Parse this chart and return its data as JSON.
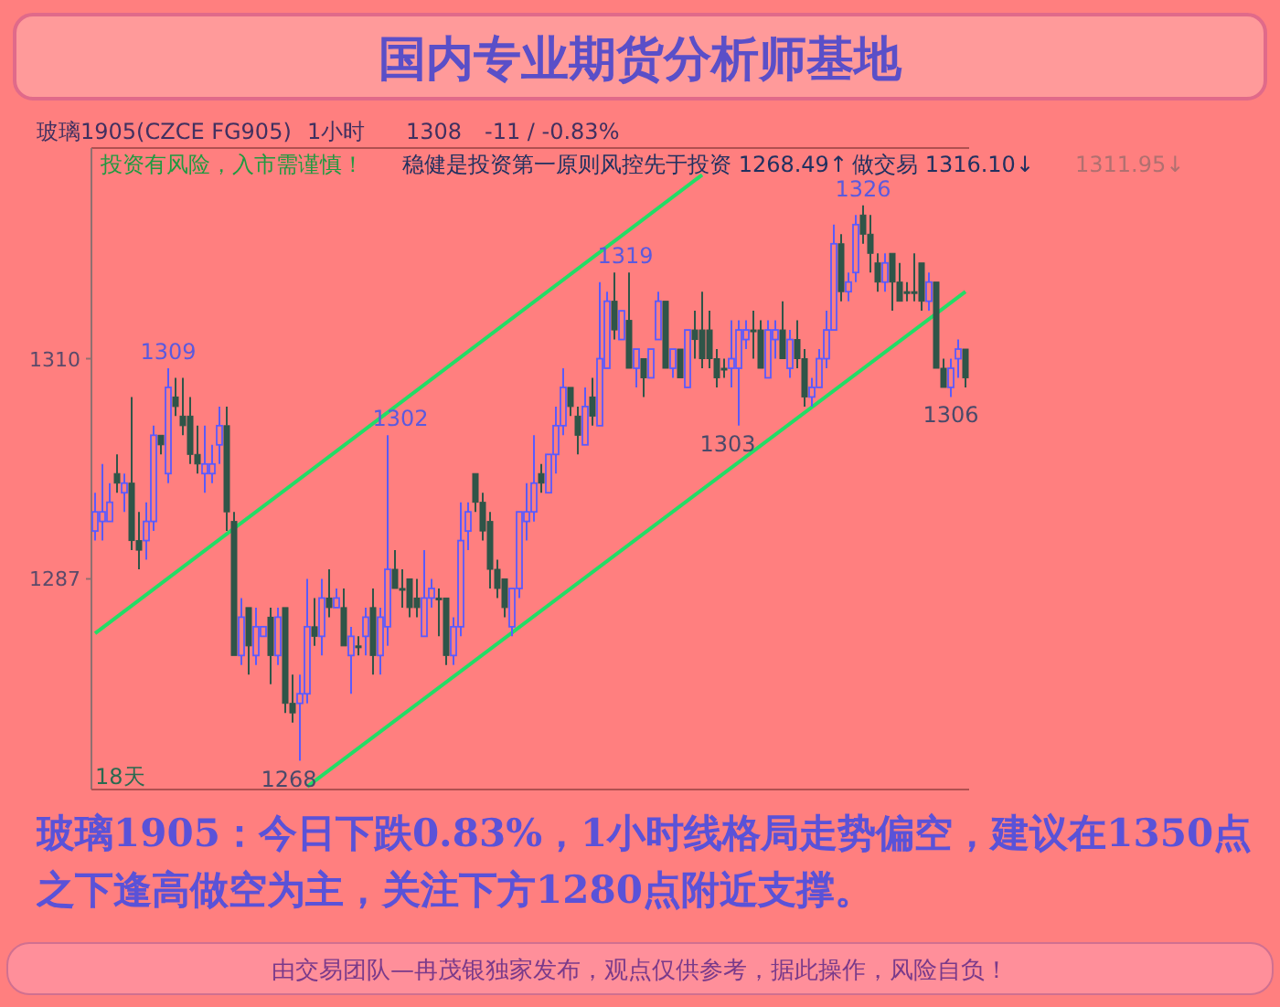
{
  "chart_data": {
    "type": "candlestick",
    "title": "国内专业期货分析师基地",
    "categories": [
      null,
      null,
      null,
      null,
      null,
      null,
      null,
      null,
      null,
      null,
      null,
      null,
      null,
      null,
      null,
      null,
      null,
      null,
      null,
      null,
      null,
      null,
      null,
      null,
      null,
      null,
      null,
      null,
      null,
      null,
      null,
      null,
      null,
      null,
      null,
      null,
      null,
      null,
      null,
      null,
      null,
      null,
      null,
      null,
      null,
      null,
      null,
      null,
      null,
      null,
      null,
      null,
      null,
      null,
      null,
      null,
      null,
      null,
      null,
      null,
      null,
      null,
      null,
      null,
      null,
      null,
      null,
      null,
      null,
      null,
      null,
      null,
      null,
      null,
      null,
      null,
      null,
      null,
      null,
      null,
      null,
      null,
      null,
      null,
      null,
      null,
      null,
      null,
      null,
      null,
      null,
      null,
      null,
      null,
      null,
      null,
      null,
      null,
      null,
      null,
      null,
      null,
      null,
      null,
      null,
      null,
      null,
      null,
      null,
      null,
      null,
      null,
      null,
      null,
      null,
      null,
      null,
      null,
      null,
      null
    ],
    "ohlc": [
      [
        1292,
        1296,
        1291,
        1294
      ],
      [
        1293,
        1299,
        1291,
        1294
      ],
      [
        1293,
        1297,
        1293,
        1295
      ],
      [
        1298,
        1300,
        1296,
        1297
      ],
      [
        1296,
        1298,
        1294,
        1297
      ],
      [
        1297,
        1306,
        1290,
        1291
      ],
      [
        1291,
        1294,
        1288,
        1290
      ],
      [
        1291,
        1295,
        1289,
        1293
      ],
      [
        1293,
        1303,
        1292,
        1302
      ],
      [
        1302,
        1302,
        1300,
        1301
      ],
      [
        1298,
        1309,
        1297,
        1307
      ],
      [
        1306,
        1308,
        1304,
        1305
      ],
      [
        1304,
        1308,
        1302,
        1303
      ],
      [
        1304,
        1306,
        1299,
        1300
      ],
      [
        1300,
        1303,
        1298,
        1299
      ],
      [
        1298,
        1303,
        1296,
        1299
      ],
      [
        1298,
        1301,
        1297,
        1299
      ],
      [
        1301,
        1305,
        1299,
        1303
      ],
      [
        1303,
        1305,
        1292,
        1294
      ],
      [
        1293,
        1294,
        1279,
        1279
      ],
      [
        1279,
        1285,
        1278,
        1283
      ],
      [
        1284,
        1284,
        1277,
        1280
      ],
      [
        1279,
        1284,
        1278,
        1282
      ],
      [
        1281,
        1282,
        1281,
        1282
      ],
      [
        1283,
        1284,
        1276,
        1279
      ],
      [
        1279,
        1284,
        1278,
        1283
      ],
      [
        1284,
        1284,
        1273,
        1274
      ],
      [
        1274,
        1277,
        1272,
        1273
      ],
      [
        1274,
        1277,
        1268,
        1275
      ],
      [
        1275,
        1287,
        1274,
        1282
      ],
      [
        1282,
        1285,
        1280,
        1281
      ],
      [
        1281,
        1287,
        1279,
        1285
      ],
      [
        1285,
        1288,
        1283,
        1284
      ],
      [
        1284,
        1286,
        1284,
        1285
      ],
      [
        1284,
        1286,
        1280,
        1280
      ],
      [
        1279,
        1282,
        1275,
        1281
      ],
      [
        1280,
        1281,
        1279,
        1280
      ],
      [
        1281,
        1284,
        1279,
        1283
      ],
      [
        1284,
        1286,
        1277,
        1279
      ],
      [
        1279,
        1284,
        1277,
        1283
      ],
      [
        1282,
        1302,
        1280,
        1288
      ],
      [
        1288,
        1290,
        1286,
        1286
      ],
      [
        1286,
        1288,
        1284,
        1286
      ],
      [
        1287,
        1287,
        1283,
        1284
      ],
      [
        1285,
        1287,
        1283,
        1284
      ],
      [
        1281,
        1290,
        1281,
        1285
      ],
      [
        1285,
        1287,
        1284,
        1286
      ],
      [
        1285,
        1286,
        1281,
        1285
      ],
      [
        1285,
        1285,
        1278,
        1279
      ],
      [
        1279,
        1283,
        1278,
        1282
      ],
      [
        1282,
        1295,
        1281,
        1291
      ],
      [
        1292,
        1295,
        1290,
        1294
      ],
      [
        1298,
        1298,
        1294,
        1295
      ],
      [
        1295,
        1296,
        1291,
        1292
      ],
      [
        1293,
        1294,
        1286,
        1288
      ],
      [
        1288,
        1289,
        1285,
        1286
      ],
      [
        1287,
        1287,
        1283,
        1284
      ],
      [
        1282,
        1286,
        1281,
        1286
      ],
      [
        1286,
        1294,
        1285,
        1294
      ],
      [
        1293,
        1297,
        1291,
        1294
      ],
      [
        1294,
        1302,
        1293,
        1297
      ],
      [
        1298,
        1299,
        1296,
        1297
      ],
      [
        1296,
        1300,
        1296,
        1300
      ],
      [
        1300,
        1305,
        1298,
        1303
      ],
      [
        1303,
        1309,
        1302,
        1307
      ],
      [
        1307,
        1307,
        1304,
        1305
      ],
      [
        1304,
        1305,
        1300,
        1302
      ],
      [
        1301,
        1307,
        1301,
        1305
      ],
      [
        1306,
        1308,
        1303,
        1304
      ],
      [
        1303,
        1318,
        1303,
        1310
      ],
      [
        1309,
        1317,
        1309,
        1316
      ],
      [
        1316,
        1319,
        1312,
        1313
      ],
      [
        1312,
        1315,
        1312,
        1315
      ],
      [
        1314,
        1319,
        1309,
        1309
      ],
      [
        1309,
        1311,
        1307,
        1311
      ],
      [
        1310,
        1310,
        1306,
        1308
      ],
      [
        1308,
        1311,
        1308,
        1311
      ],
      [
        1312,
        1317,
        1312,
        1316
      ],
      [
        1316,
        1316,
        1309,
        1309
      ],
      [
        1309,
        1311,
        1308,
        1311
      ],
      [
        1311,
        1311,
        1308,
        1308
      ],
      [
        1307,
        1313,
        1307,
        1313
      ],
      [
        1313,
        1315,
        1310,
        1312
      ],
      [
        1313,
        1317,
        1309,
        1310
      ],
      [
        1313,
        1315,
        1309,
        1310
      ],
      [
        1310,
        1311,
        1307,
        1308
      ],
      [
        1309,
        1310,
        1308,
        1309
      ],
      [
        1309,
        1314,
        1307,
        1310
      ],
      [
        1309,
        1314,
        1303,
        1313
      ],
      [
        1312,
        1314,
        1311,
        1313
      ],
      [
        1313,
        1315,
        1310,
        1313
      ],
      [
        1313,
        1314,
        1309,
        1309
      ],
      [
        1308,
        1314,
        1308,
        1313
      ],
      [
        1312,
        1314,
        1310,
        1313
      ],
      [
        1313,
        1316,
        1310,
        1310
      ],
      [
        1309,
        1313,
        1308,
        1312
      ],
      [
        1312,
        1314,
        1309,
        1310
      ],
      [
        1310,
        1311,
        1305,
        1306
      ],
      [
        1306,
        1308,
        1305,
        1307
      ],
      [
        1307,
        1311,
        1307,
        1310
      ],
      [
        1310,
        1315,
        1309,
        1313
      ],
      [
        1313,
        1324,
        1313,
        1322
      ],
      [
        1322,
        1323,
        1316,
        1317
      ],
      [
        1317,
        1319,
        1316,
        1318
      ],
      [
        1319,
        1325,
        1318,
        1324
      ],
      [
        1325,
        1326,
        1322,
        1323
      ],
      [
        1323,
        1325,
        1319,
        1321
      ],
      [
        1320,
        1321,
        1317,
        1318
      ],
      [
        1318,
        1321,
        1317,
        1320
      ],
      [
        1321,
        1321,
        1315,
        1318
      ],
      [
        1318,
        1320,
        1316,
        1316
      ],
      [
        1317,
        1318,
        1316,
        1317
      ],
      [
        1317,
        1321,
        1316,
        1317
      ],
      [
        1320,
        1320,
        1315,
        1316
      ],
      [
        1316,
        1319,
        1315,
        1318
      ],
      [
        1318,
        1318,
        1309,
        1309
      ],
      [
        1309,
        1310,
        1307,
        1307
      ],
      [
        1307,
        1310,
        1306,
        1309
      ],
      [
        1310,
        1312,
        1308,
        1311
      ],
      [
        1311,
        1311,
        1307,
        1308
      ]
    ],
    "series": [
      {
        "type": "line",
        "color": "#22dd66",
        "values": [
          1281.3,
          null,
          null,
          null,
          null,
          null,
          null,
          null,
          null,
          null,
          null,
          null,
          null,
          null,
          null,
          null,
          null,
          null,
          null,
          null,
          null,
          null,
          null,
          null,
          null,
          null,
          null,
          null,
          null,
          null,
          null,
          null,
          null,
          null,
          null,
          null,
          null,
          null,
          null,
          null,
          null,
          null,
          null,
          null,
          null,
          null,
          null,
          null,
          null,
          null,
          null,
          null,
          null,
          null,
          null,
          null,
          null,
          null,
          null,
          null,
          null,
          null,
          null,
          null,
          null,
          null,
          null,
          null,
          null,
          null,
          null,
          null,
          null,
          null,
          null,
          null,
          null,
          null,
          null,
          null,
          null,
          null,
          null,
          1329.2,
          null,
          null,
          null,
          null,
          null,
          null,
          null,
          null,
          null,
          null,
          null,
          null,
          null,
          null,
          null,
          null,
          null,
          null,
          null,
          null,
          null,
          null,
          null,
          null,
          null,
          null,
          null,
          null,
          null,
          null,
          null,
          null,
          null,
          null,
          null,
          null
        ]
      },
      {
        "type": "line",
        "color": "#22dd66",
        "values": [
          null,
          null,
          null,
          null,
          null,
          null,
          null,
          null,
          null,
          null,
          null,
          null,
          null,
          null,
          null,
          null,
          null,
          null,
          null,
          null,
          null,
          null,
          null,
          null,
          null,
          null,
          null,
          null,
          null,
          1265.3,
          null,
          null,
          null,
          null,
          null,
          null,
          null,
          null,
          null,
          null,
          null,
          null,
          null,
          null,
          null,
          null,
          null,
          null,
          null,
          null,
          null,
          null,
          null,
          null,
          null,
          null,
          null,
          null,
          null,
          null,
          null,
          null,
          null,
          null,
          null,
          null,
          null,
          null,
          null,
          null,
          null,
          null,
          null,
          null,
          null,
          null,
          null,
          null,
          null,
          null,
          null,
          null,
          null,
          null,
          null,
          null,
          null,
          null,
          null,
          null,
          null,
          null,
          null,
          null,
          null,
          null,
          null,
          null,
          null,
          null,
          null,
          null,
          null,
          null,
          null,
          null,
          null,
          null,
          null,
          null,
          null,
          null,
          null,
          null,
          null,
          null,
          null,
          null,
          null,
          1317
        ]
      }
    ],
    "ylim": [
      1265,
      1332
    ],
    "yticks": [
      1287,
      1310
    ],
    "annotations": [
      "1268",
      "1303",
      "1309",
      "1302",
      "1319",
      "1326",
      "1306",
      "玻璃1905(CZCE FG905)",
      "1小时",
      "1308",
      "-11 / -0.83%",
      "投资有风险，入市需谨慎！",
      "稳健是投资第一原则风控先于投资 1268.49↑",
      "做交易 1316.10↓",
      "1311.95↓",
      "18天",
      "玻璃1905：今日下跌0.83%，1小时线格局走势偏空，建议在1350点之下逢高做空为主，关注下方1280点附近支撑。",
      "由交易团队—冉茂银独家发布，观点仅供参考，据此操作，风险自负！"
    ]
  }
}
